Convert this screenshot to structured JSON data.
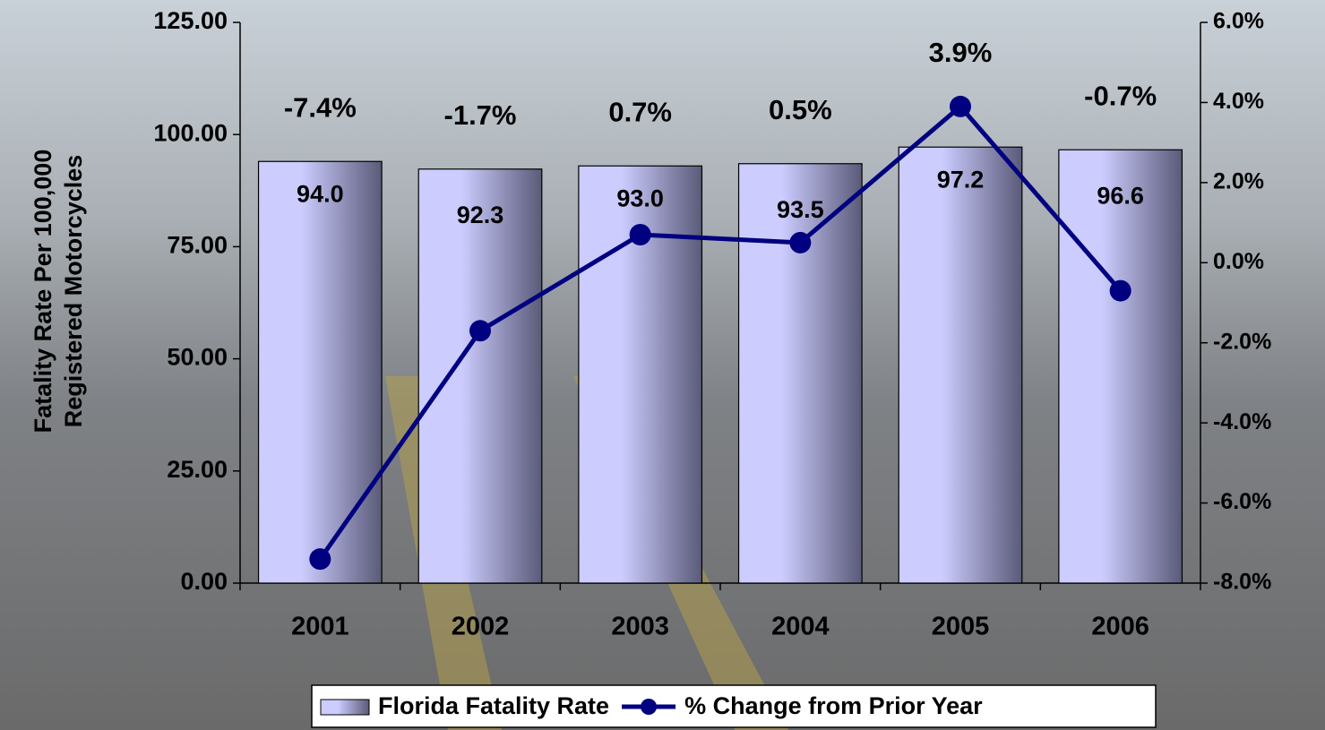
{
  "chart_data": {
    "type": "bar",
    "ylabel": [
      "Fatality Rate Per 100,000",
      "Registered Motorcycles"
    ],
    "categories": [
      "2001",
      "2002",
      "2003",
      "2004",
      "2005",
      "2006"
    ],
    "series": [
      {
        "name": "Florida Fatality Rate",
        "type": "bar",
        "color": "#ccccff",
        "values": [
          94.0,
          92.3,
          93.0,
          93.5,
          97.2,
          96.6
        ],
        "value_labels": [
          "94.0",
          "92.3",
          "93.0",
          "93.5",
          "97.2",
          "96.6"
        ]
      },
      {
        "name": "% Change from Prior Year",
        "type": "line",
        "axis": "y2",
        "color": "#000080",
        "values": [
          -7.4,
          -1.7,
          0.7,
          0.5,
          3.9,
          -0.7
        ],
        "value_labels": [
          "-7.4%",
          "-1.7%",
          "0.7%",
          "0.5%",
          "3.9%",
          "-0.7%"
        ]
      }
    ],
    "ylim": [
      0,
      125
    ],
    "yticks": [
      {
        "value": 0,
        "label": "0.00"
      },
      {
        "value": 25,
        "label": "25.00"
      },
      {
        "value": 50,
        "label": "50.00"
      },
      {
        "value": 75,
        "label": "75.00"
      },
      {
        "value": 100,
        "label": "100.00"
      },
      {
        "value": 125,
        "label": "125.00"
      }
    ],
    "y2lim": [
      -8,
      6
    ],
    "y2ticks": [
      {
        "value": -8,
        "label": "-8.0%"
      },
      {
        "value": -6,
        "label": "-6.0%"
      },
      {
        "value": -4,
        "label": "-4.0%"
      },
      {
        "value": -2,
        "label": "-2.0%"
      },
      {
        "value": 0,
        "label": "0.0%"
      },
      {
        "value": 2,
        "label": "2.0%"
      },
      {
        "value": 4,
        "label": "4.0%"
      },
      {
        "value": 6,
        "label": "6.0%"
      }
    ],
    "grid": false,
    "legend": "bottom"
  }
}
